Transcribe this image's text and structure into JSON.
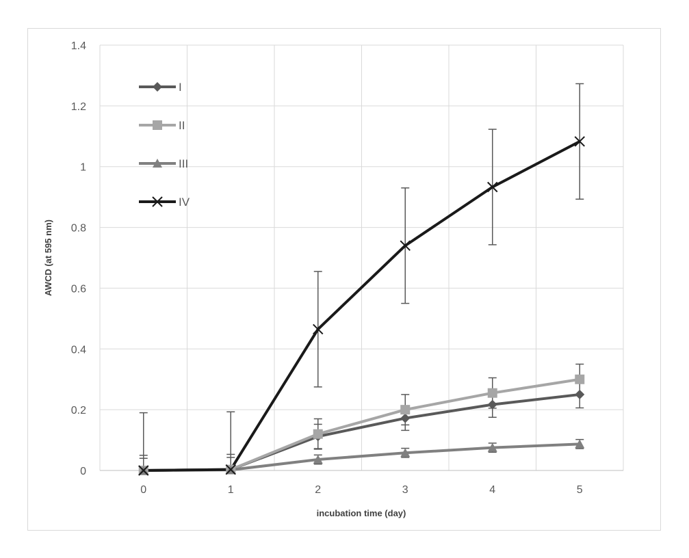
{
  "chart_data": {
    "type": "line",
    "title": "",
    "xlabel": "incubation time (day)",
    "ylabel": "AWCD (at 595 nm)",
    "x": [
      0,
      1,
      2,
      3,
      4,
      5
    ],
    "x_tick_labels": [
      "0",
      "1",
      "2",
      "3",
      "4",
      "5"
    ],
    "ylim": [
      0,
      1.4
    ],
    "y_tick_labels": [
      "0",
      "0.2",
      "0.4",
      "0.6",
      "0.8",
      "1",
      "1.2",
      "1.4"
    ],
    "grid": true,
    "legend_position": "top-left",
    "series": [
      {
        "name": "I",
        "values": [
          0,
          0.003,
          0.112,
          0.172,
          0.217,
          0.25
        ],
        "error": [
          0.05,
          0.05,
          0.04,
          0.04,
          0.042,
          0.044
        ],
        "color": "#595959",
        "marker": "diamond"
      },
      {
        "name": "II",
        "values": [
          0,
          0.003,
          0.12,
          0.2,
          0.255,
          0.3
        ],
        "error": [
          0.04,
          0.04,
          0.05,
          0.05,
          0.05,
          0.05
        ],
        "color": "#a6a6a6",
        "marker": "square"
      },
      {
        "name": "III",
        "values": [
          0,
          0.002,
          0.036,
          0.058,
          0.075,
          0.087
        ],
        "error": [
          0.01,
          0.01,
          0.015,
          0.015,
          0.015,
          0.015
        ],
        "color": "#808080",
        "marker": "triangle"
      },
      {
        "name": "IV",
        "values": [
          0,
          0.003,
          0.465,
          0.74,
          0.933,
          1.083
        ],
        "error": [
          0.19,
          0.19,
          0.19,
          0.19,
          0.19,
          0.19
        ],
        "color": "#1a1a1a",
        "marker": "x"
      }
    ]
  }
}
